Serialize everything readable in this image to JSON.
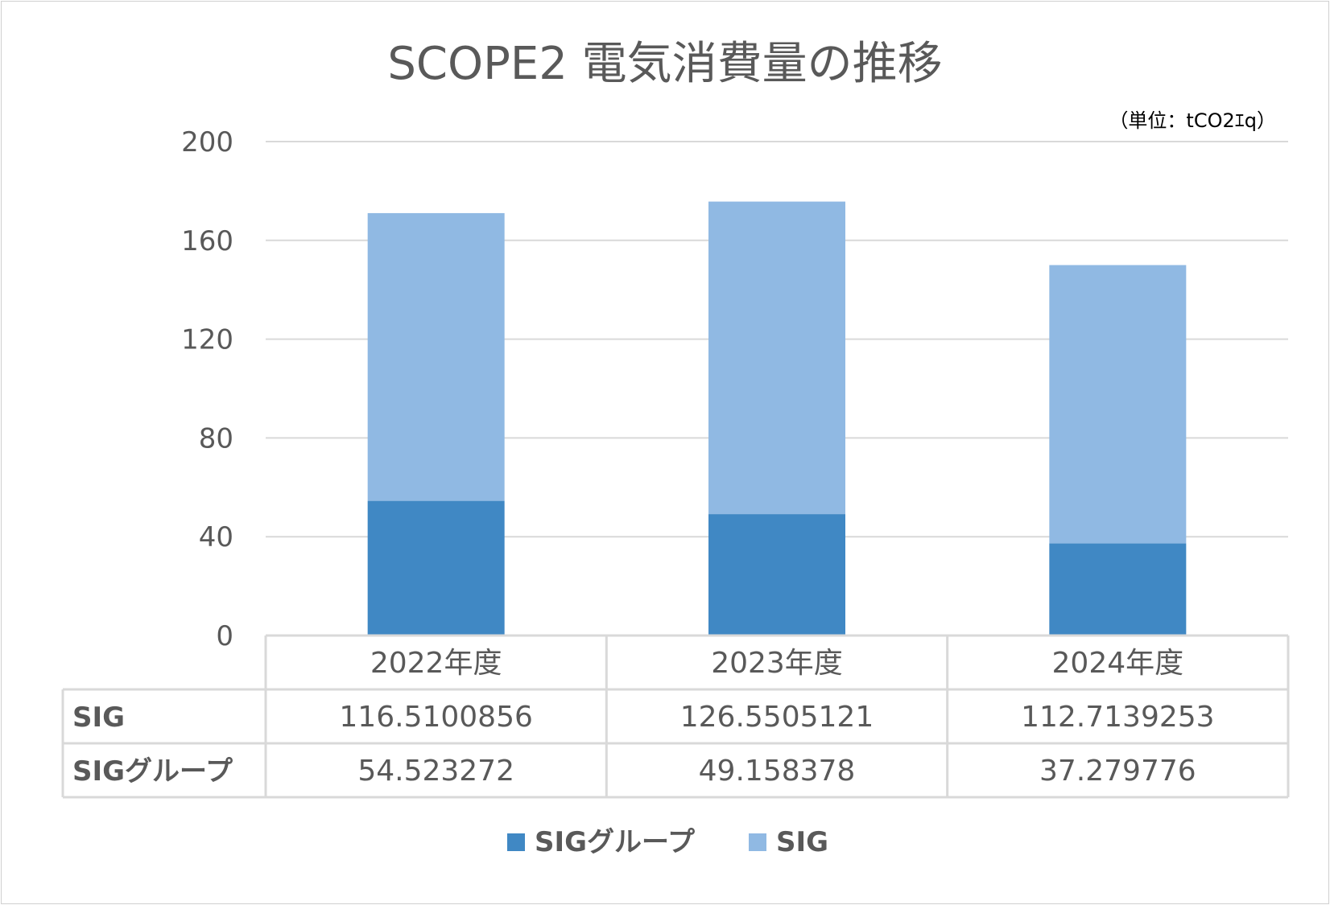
{
  "chart_data": {
    "type": "bar",
    "stacked": true,
    "title": "SCOPE2  電気消費量の推移",
    "unit_label": "（単位：tCO2ｴq）",
    "categories": [
      "2022年度",
      "2023年度",
      "2024年度"
    ],
    "ylim": [
      0,
      200
    ],
    "yticks": [
      0,
      40,
      80,
      120,
      160,
      200
    ],
    "grid": true,
    "legend_position": "bottom",
    "series": [
      {
        "name": "SIGグループ",
        "color": "#4088c4",
        "values": [
          54.523272,
          49.158378,
          37.279776
        ],
        "labels": [
          "54.523272",
          "49.158378",
          "37.279776"
        ]
      },
      {
        "name": "SIG",
        "color": "#90b9e3",
        "values": [
          116.5100856,
          126.5505121,
          112.7139253
        ],
        "labels": [
          "116.5100856",
          "126.5505121",
          "112.7139253"
        ]
      }
    ],
    "table_rows": [
      {
        "header": "SIG",
        "series_index": 1
      },
      {
        "header": "SIGグループ",
        "series_index": 0
      }
    ],
    "legend": [
      {
        "name": "SIGグループ",
        "color": "#4088c4"
      },
      {
        "name": "SIG",
        "color": "#90b9e3"
      }
    ]
  }
}
